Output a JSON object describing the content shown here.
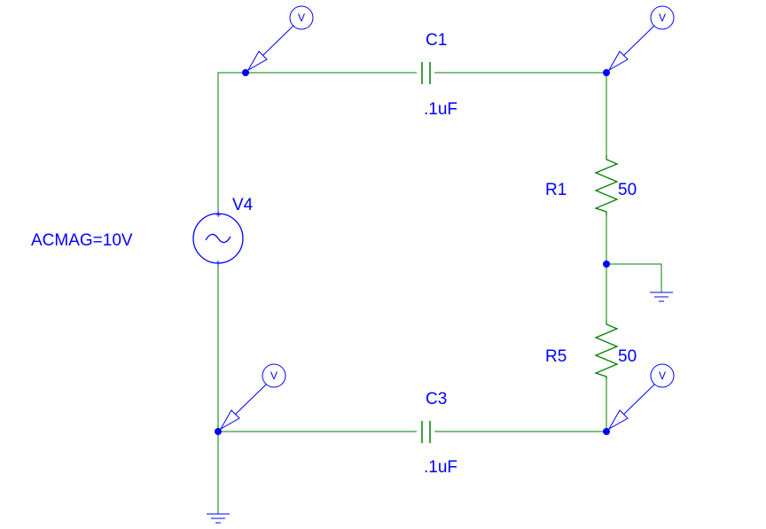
{
  "colors": {
    "wire": "#007f00",
    "component": "#000000",
    "label": "#0000ff",
    "node": "#0000ff",
    "ground": "#0000ff",
    "probe": "#0000ff",
    "source": "#0000ff"
  },
  "source": {
    "ref": "V4",
    "value": "ACMAG=10V",
    "plus": "+",
    "minus": "-"
  },
  "capacitors": [
    {
      "ref": "C1",
      "value": ".1uF"
    },
    {
      "ref": "C3",
      "value": ".1uF"
    }
  ],
  "resistors": [
    {
      "ref": "R1",
      "value": "50"
    },
    {
      "ref": "R5",
      "value": "50"
    }
  ],
  "probe_label": "V",
  "icons": [
    "voltage-probe-icon",
    "ground-icon",
    "ac-source-icon"
  ]
}
